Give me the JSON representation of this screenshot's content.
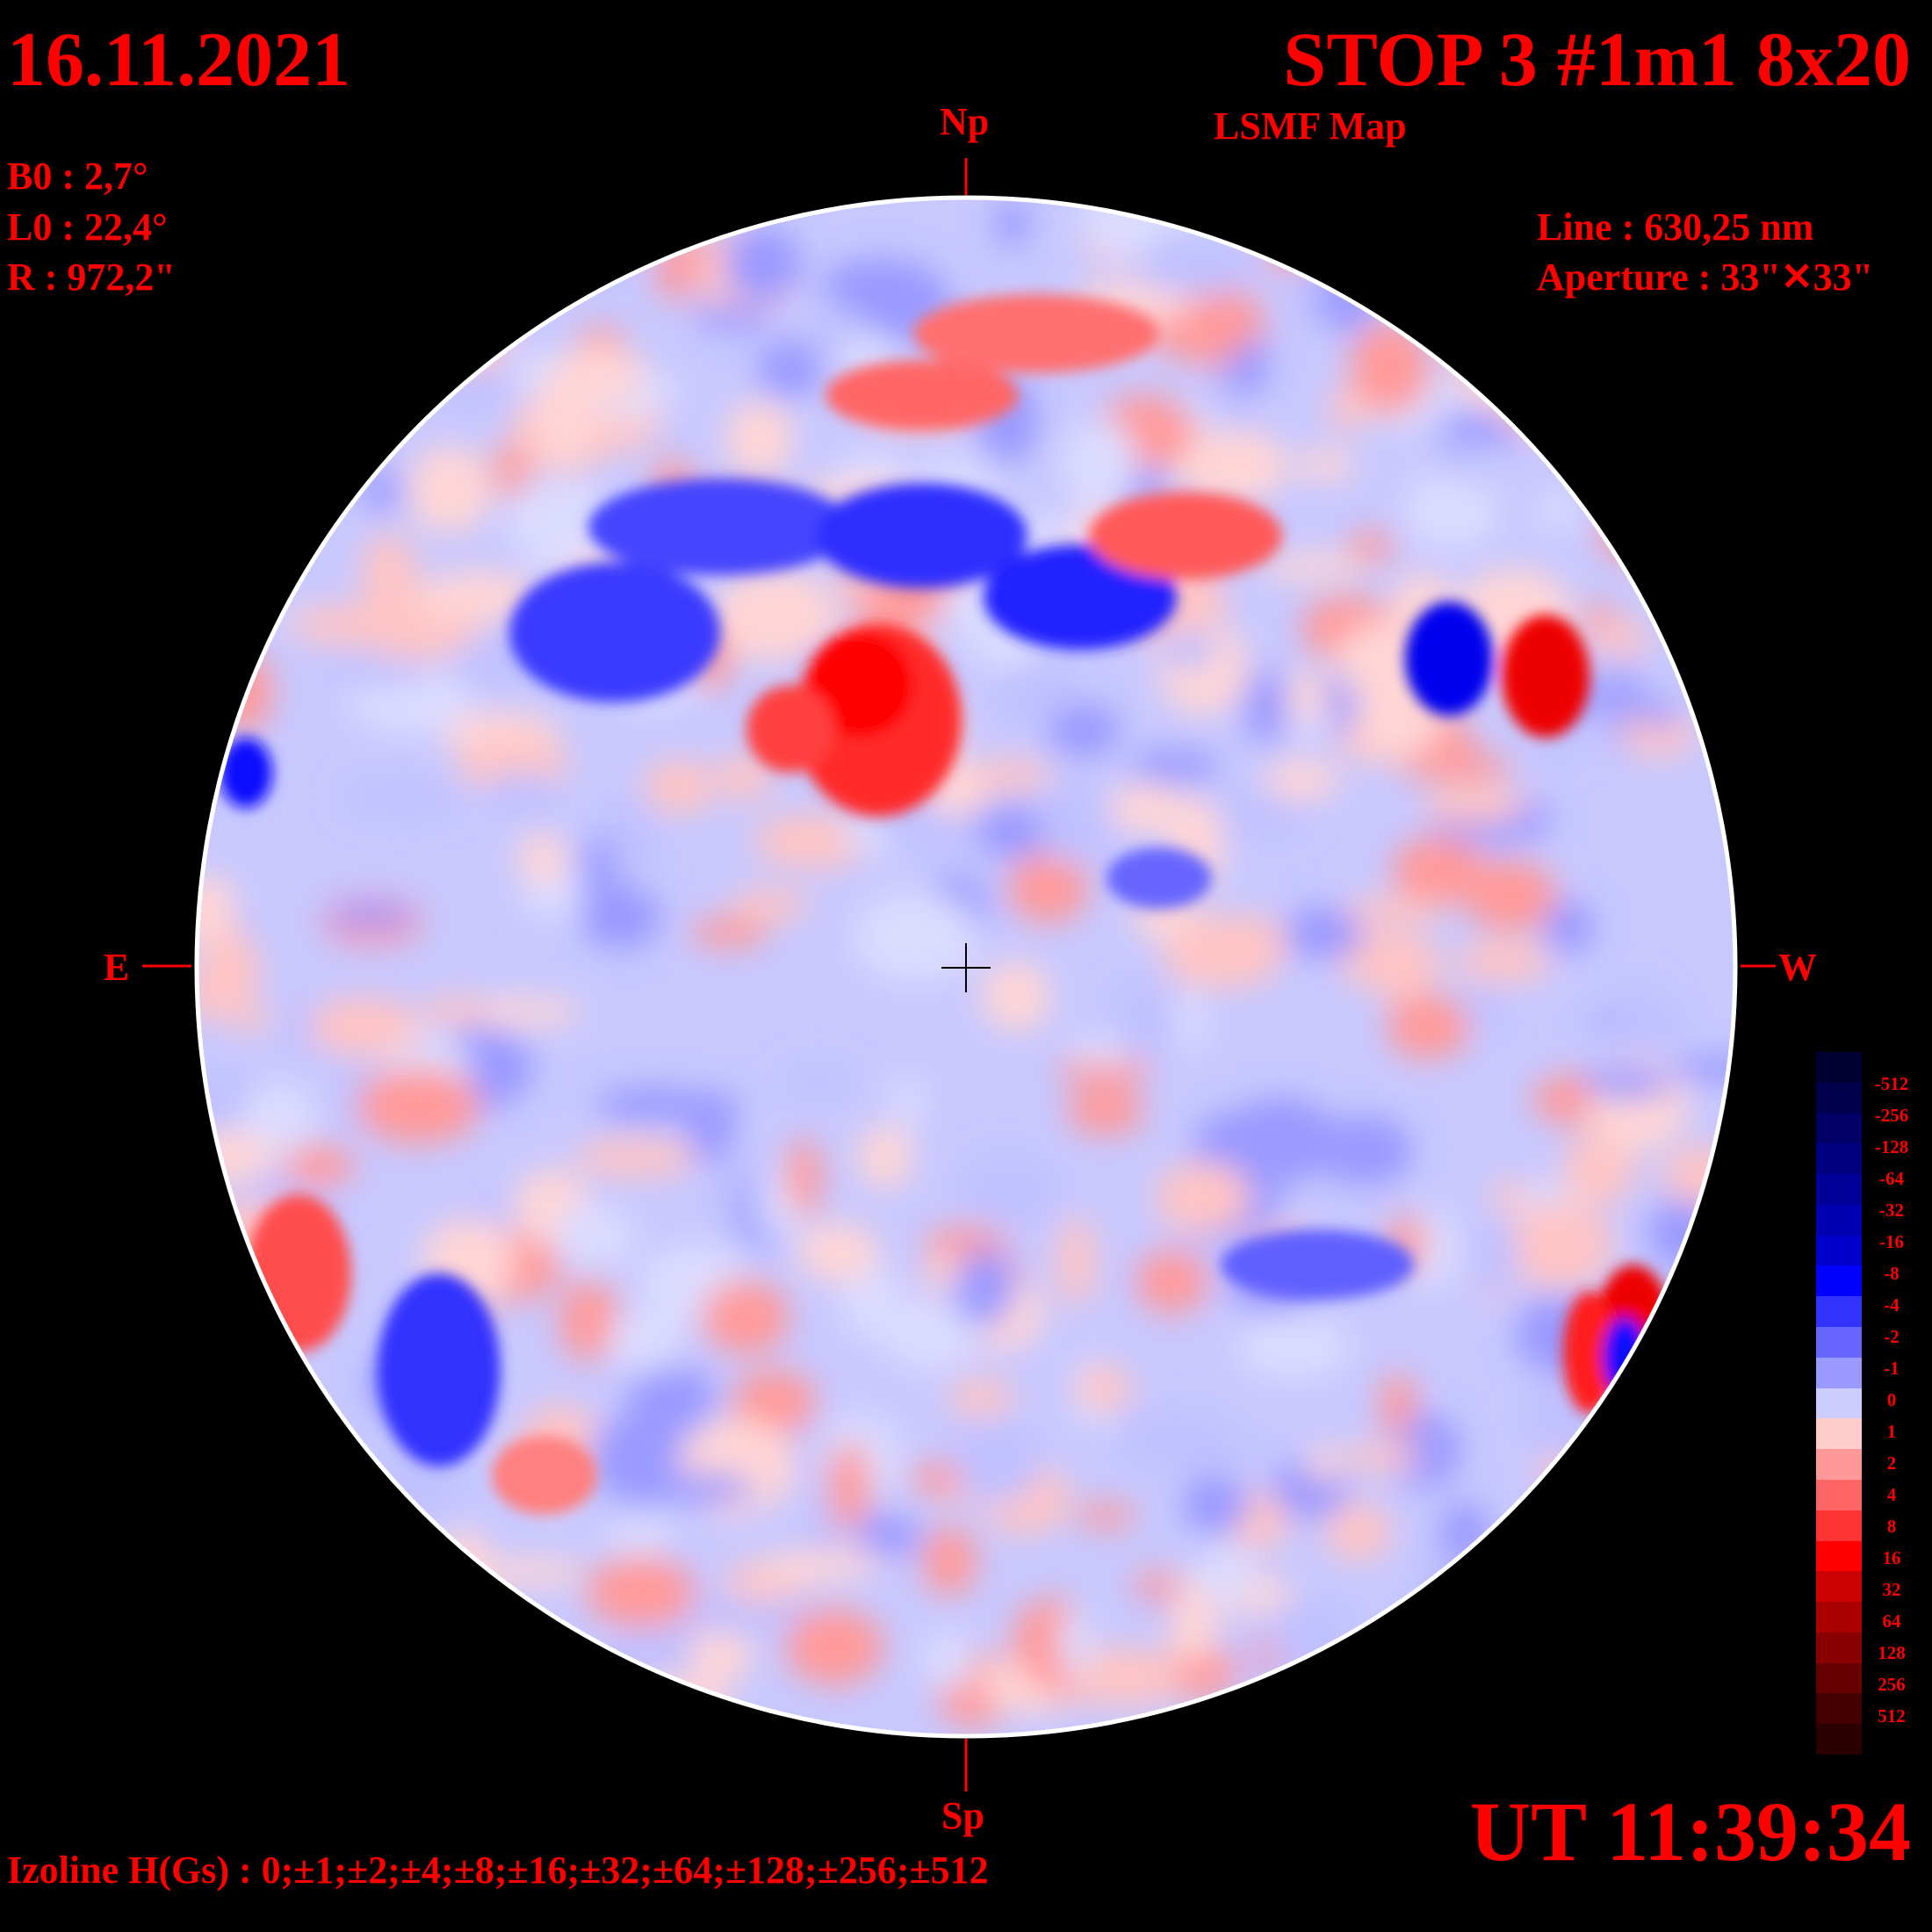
{
  "header": {
    "date": "16.11.2021",
    "title": "STOP 3 #1m1 8x20",
    "subtitle": "LSMF  Map"
  },
  "params": {
    "b0": "B0 : 2,7°",
    "l0": "L0 : 22,4°",
    "r": "R  : 972,2\""
  },
  "instrument": {
    "line": "Line :  630,25 nm",
    "aperture": "Aperture : 33\"✕33\""
  },
  "directions": {
    "north": "Np",
    "south": "Sp",
    "east": "E",
    "west": "W"
  },
  "time": "UT 11:39:34",
  "izoline": "Izoline H(Gs) : 0;±1;±2;±4;±8;±16;±32;±64;±128;±256;±512",
  "colorbar": {
    "labels": [
      "-512",
      "-256",
      "-128",
      "-64",
      "-32",
      "-16",
      "-8",
      "-4",
      "-2",
      "-1",
      "0",
      "1",
      "2",
      "4",
      "8",
      "16",
      "32",
      "64",
      "128",
      "256",
      "512"
    ],
    "colors": [
      "#000033",
      "#00004d",
      "#000066",
      "#000080",
      "#000099",
      "#0000b3",
      "#0000cc",
      "#0000ff",
      "#3333ff",
      "#6666ff",
      "#9999ff",
      "#ccccff",
      "#ffcccc",
      "#ff9999",
      "#ff6666",
      "#ff3333",
      "#ff0000",
      "#cc0000",
      "#aa0000",
      "#880000",
      "#660000",
      "#440000",
      "#2a0000"
    ]
  },
  "colors": {
    "text": "#ff0000",
    "background": "#000000",
    "field_positive": "#ff0000",
    "field_negative": "#0000ff"
  }
}
